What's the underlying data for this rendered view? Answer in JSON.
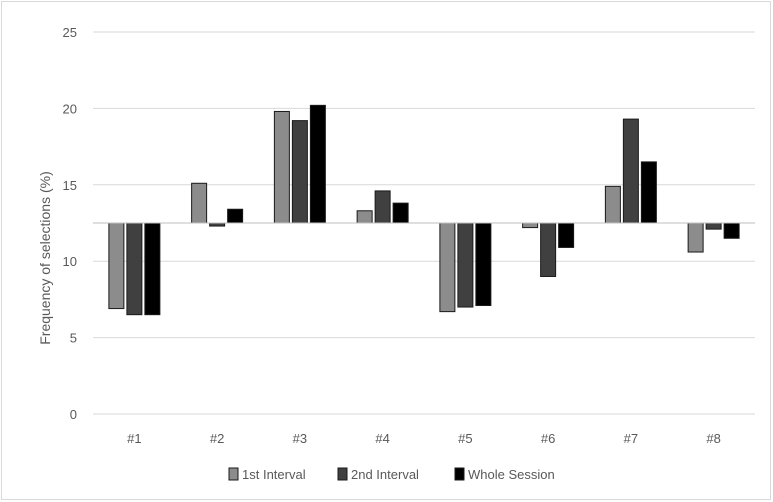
{
  "chart_data": {
    "type": "bar",
    "categories": [
      "#1",
      "#2",
      "#3",
      "#4",
      "#5",
      "#6",
      "#7",
      "#8"
    ],
    "ylabel": "Frequency of selections (%)",
    "xlabel": "",
    "ylim": [
      0,
      25
    ],
    "yticks": [
      0,
      5,
      10,
      15,
      20,
      25
    ],
    "baseline": 12.5,
    "grid": true,
    "legend_position": "bottom",
    "series": [
      {
        "name": "1st Interval",
        "color": "#8c8c8c",
        "values": [
          6.9,
          15.1,
          19.8,
          13.3,
          6.7,
          12.2,
          14.9,
          10.6
        ]
      },
      {
        "name": "2nd Interval",
        "color": "#404040",
        "values": [
          6.5,
          12.3,
          19.2,
          14.6,
          7.0,
          9.0,
          19.3,
          12.1
        ]
      },
      {
        "name": "Whole Session",
        "color": "#000000",
        "values": [
          6.5,
          13.4,
          20.2,
          13.8,
          7.1,
          10.9,
          16.5,
          11.5
        ]
      }
    ]
  }
}
